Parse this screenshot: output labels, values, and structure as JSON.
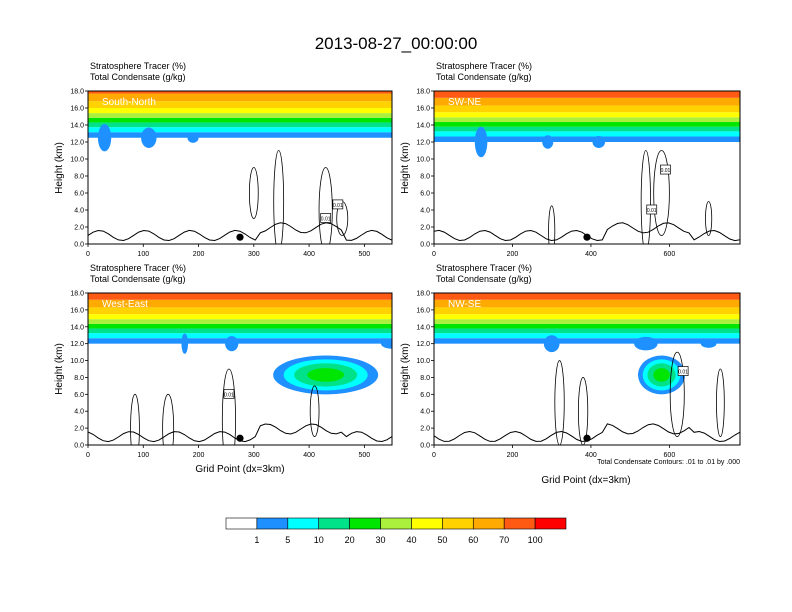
{
  "title": "2013-08-27_00:00:00",
  "header_line1": "Stratosphere Tracer   (%)",
  "header_line2": "Total Condensate   (g/kg)",
  "ylabel": "Height (km)",
  "xlabel": "Grid Point (dx=3km)",
  "contour_note": "Total Condensate Contours: .01 to .01 by .000",
  "colors": {
    "levels": [
      "#ffffff",
      "#1e90ff",
      "#00ffff",
      "#00e28a",
      "#00e600",
      "#aaf03c",
      "#ffff00",
      "#ffd200",
      "#ffaa00",
      "#ff5a14",
      "#ff0000"
    ],
    "marker": "#000000",
    "line": "#000000"
  },
  "colorbar": {
    "labels": [
      "1",
      "5",
      "10",
      "20",
      "30",
      "40",
      "50",
      "60",
      "70",
      "100"
    ]
  },
  "chart_data": [
    {
      "type": "contour",
      "name": "South-North",
      "xlim": [
        0,
        550
      ],
      "ylim": [
        0,
        18
      ],
      "xticks": [
        "0",
        "100",
        "200",
        "300",
        "400",
        "500"
      ],
      "xtick_values": [
        0,
        100,
        200,
        300,
        400,
        500
      ],
      "yticks": [
        "0.0",
        "2.0",
        "4.0",
        "6.0",
        "8.0",
        "10.0",
        "12.0",
        "14.0",
        "16.0",
        "18.0"
      ],
      "strat_base_km": 12.5,
      "marker_x": 275,
      "contour_labels": [
        {
          "x": 452,
          "y": 4.6,
          "text": "0.01"
        },
        {
          "x": 430,
          "y": 3.0,
          "text": "0.01"
        }
      ]
    },
    {
      "type": "contour",
      "name": "SW-NE",
      "xlim": [
        0,
        780
      ],
      "ylim": [
        0,
        18
      ],
      "xticks": [
        "0",
        "200",
        "400",
        "600"
      ],
      "xtick_values": [
        0,
        200,
        400,
        600
      ],
      "yticks": [
        "0.0",
        "2.0",
        "4.0",
        "6.0",
        "8.0",
        "10.0",
        "12.0",
        "14.0",
        "16.0",
        "18.0"
      ],
      "strat_base_km": 12.0,
      "marker_x": 390,
      "contour_labels": [
        {
          "x": 590,
          "y": 8.7,
          "text": "0.01"
        },
        {
          "x": 555,
          "y": 4.0,
          "text": "0.01"
        }
      ]
    },
    {
      "type": "contour",
      "name": "West-East",
      "xlim": [
        0,
        550
      ],
      "ylim": [
        0,
        18
      ],
      "xticks": [
        "0",
        "100",
        "200",
        "300",
        "400",
        "500"
      ],
      "xtick_values": [
        0,
        100,
        200,
        300,
        400,
        500
      ],
      "yticks": [
        "0.0",
        "2.0",
        "4.0",
        "6.0",
        "8.0",
        "10.0",
        "12.0",
        "14.0",
        "16.0",
        "18.0"
      ],
      "strat_base_km": 12.0,
      "marker_x": 275,
      "contour_labels": [
        {
          "x": 255,
          "y": 6.0,
          "text": "0.01"
        }
      ]
    },
    {
      "type": "contour",
      "name": "NW-SE",
      "xlim": [
        0,
        780
      ],
      "ylim": [
        0,
        18
      ],
      "xticks": [
        "0",
        "200",
        "400",
        "600"
      ],
      "xtick_values": [
        0,
        200,
        400,
        600
      ],
      "yticks": [
        "0.0",
        "2.0",
        "4.0",
        "6.0",
        "8.0",
        "10.0",
        "12.0",
        "14.0",
        "16.0",
        "18.0"
      ],
      "strat_base_km": 12.0,
      "marker_x": 390,
      "contour_labels": [
        {
          "x": 635,
          "y": 8.7,
          "text": "0.01"
        }
      ]
    }
  ]
}
